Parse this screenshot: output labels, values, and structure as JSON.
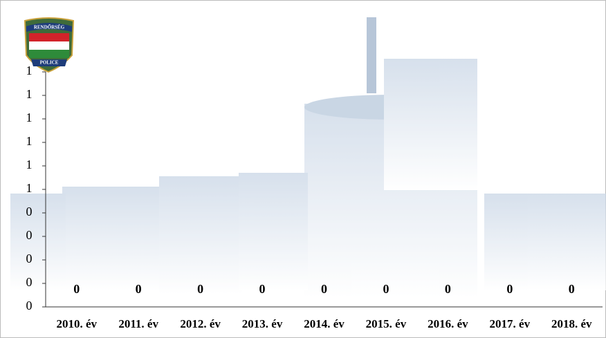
{
  "logo": {
    "top": "RENDŐRSÉG",
    "bottom": "POLICE"
  },
  "chart_data": {
    "type": "bar",
    "categories": [
      "2010. év",
      "2011. év",
      "2012. év",
      "2013. év",
      "2014. év",
      "2015. év",
      "2016. év",
      "2017. év",
      "2018. év"
    ],
    "values": [
      0,
      0,
      0,
      0,
      0,
      0,
      0,
      0,
      0
    ],
    "color": "#9fb6d0",
    "ylim": [
      0,
      1
    ],
    "yticks": [
      0,
      {
        "value": 0.1,
        "label": "0"
      },
      {
        "value": 0.2,
        "label": "0"
      },
      {
        "value": 0.3,
        "label": "0"
      },
      {
        "value": 0.4,
        "label": "0"
      },
      {
        "value": 0.5,
        "label": "1"
      },
      {
        "value": 0.6,
        "label": "1"
      },
      {
        "value": 0.7,
        "label": "1"
      },
      {
        "value": 0.8,
        "label": "1"
      },
      {
        "value": 0.9,
        "label": "1"
      },
      1
    ],
    "grid": false
  }
}
